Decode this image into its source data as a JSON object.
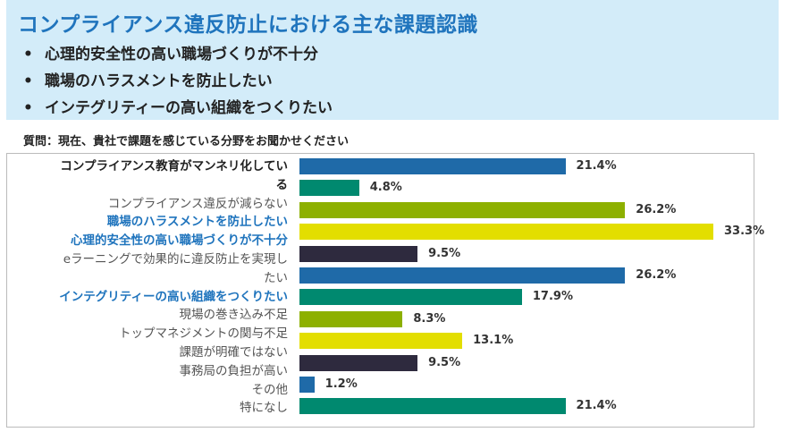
{
  "header": {
    "title": "コンプライアンス違反防止における主な課題認識",
    "bullet": "•",
    "bullets": [
      "心理的安全性の高い職場づくりが不十分",
      "職場のハラスメントを防止したい",
      "インテグリティーの高い組織をつくりたい"
    ]
  },
  "chart_data": {
    "type": "bar",
    "orientation": "horizontal",
    "title": "質問：現在、貴社で課題を感じている分野をお聞かせください",
    "categories": [
      {
        "lines": [
          "コンプライアンス教育がマンネリ化してい",
          "る"
        ],
        "style": "bold"
      },
      {
        "lines": [
          "コンプライアンス違反が減らない"
        ],
        "style": "normal"
      },
      {
        "lines": [
          "職場のハラスメントを防止したい"
        ],
        "style": "blue"
      },
      {
        "lines": [
          "心理的安全性の高い職場づくりが不十分"
        ],
        "style": "blue"
      },
      {
        "lines": [
          "eラーニングで効果的に違反防止を実現し",
          "たい"
        ],
        "style": "normal"
      },
      {
        "lines": [
          "インテグリティーの高い組織をつくりたい"
        ],
        "style": "blue"
      },
      {
        "lines": [
          "現場の巻き込み不足"
        ],
        "style": "normal"
      },
      {
        "lines": [
          "トップマネジメントの関与不足"
        ],
        "style": "normal"
      },
      {
        "lines": [
          "課題が明確ではない"
        ],
        "style": "normal"
      },
      {
        "lines": [
          "事務局の負担が高い"
        ],
        "style": "normal"
      },
      {
        "lines": [
          "その他"
        ],
        "style": "normal"
      },
      {
        "lines": [
          "特になし"
        ],
        "style": "normal"
      }
    ],
    "values": [
      21.4,
      4.8,
      26.2,
      33.3,
      9.5,
      26.2,
      17.9,
      8.3,
      13.1,
      9.5,
      1.2,
      21.4
    ],
    "value_labels": [
      "21.4%",
      "4.8%",
      "26.2%",
      "33.3%",
      "9.5%",
      "26.2%",
      "17.9%",
      "8.3%",
      "13.1%",
      "9.5%",
      "1.2%",
      "21.4%"
    ],
    "colors": [
      "#1f6aa8",
      "#00896f",
      "#8db000",
      "#e3de00",
      "#2e2a3e"
    ],
    "xlim": [
      0,
      35
    ],
    "grid": false
  }
}
